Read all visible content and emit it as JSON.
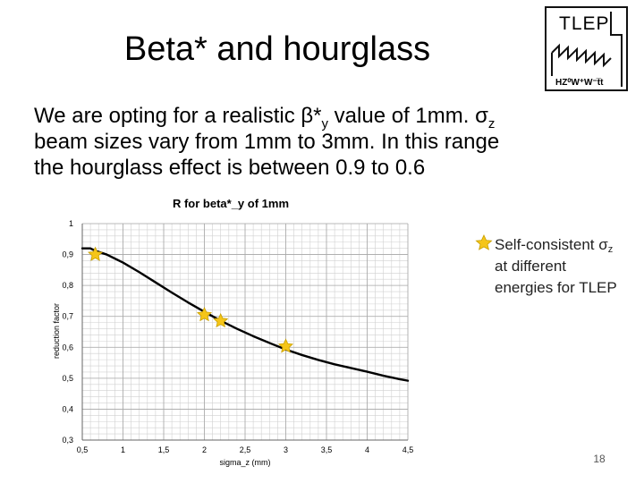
{
  "slide": {
    "title": "Beta* and hourglass",
    "page_number": "18",
    "logo": {
      "name": "TLEP",
      "subtitle": "HZ⁰W⁺W⁻t̅t"
    }
  },
  "paragraph": {
    "line1_pre": "We are opting for a realistic β*",
    "line1_sub": "y",
    "line1_post": " value of 1mm. σ",
    "line1_sub2": "z",
    "line2": "beam sizes vary from 1mm to 3mm. In this range",
    "line3": "the hourglass effect is between 0.9 to 0.6"
  },
  "legend": {
    "line1_pre": "Self-consistent σ",
    "line1_sub": "z",
    "line2": "at different",
    "line3": "energies for TLEP"
  },
  "chart_data": {
    "type": "line",
    "title": "R for beta*_y of 1mm",
    "xlabel": "sigma_z (mm)",
    "ylabel": "reduction factor",
    "xlim": [
      0.5,
      4.5
    ],
    "ylim": [
      0.3,
      1.0
    ],
    "grid": true,
    "x_ticks": [
      0.5,
      1,
      1.5,
      2,
      2.5,
      3,
      3.5,
      4,
      4.5
    ],
    "x_tick_labels": [
      "0,5",
      "1",
      "1,5",
      "2",
      "2,5",
      "3",
      "3,5",
      "4",
      "4,5"
    ],
    "y_ticks": [
      0.3,
      0.4,
      0.5,
      0.6,
      0.7,
      0.8,
      0.9,
      1.0
    ],
    "y_tick_labels": [
      "0,3",
      "0,4",
      "0,5",
      "0,6",
      "0,7",
      "0,8",
      "0,9",
      "1"
    ],
    "series": [
      {
        "name": "R",
        "x": [
          0.5,
          0.6,
          0.65,
          0.8,
          1.0,
          1.2,
          1.4,
          1.6,
          1.8,
          2.0,
          2.2,
          2.4,
          2.6,
          2.8,
          3.0,
          3.2,
          3.4,
          3.6,
          3.8,
          4.0,
          4.2,
          4.4,
          4.5
        ],
        "y": [
          0.92,
          0.92,
          0.913,
          0.9,
          0.874,
          0.843,
          0.81,
          0.777,
          0.745,
          0.715,
          0.686,
          0.66,
          0.636,
          0.614,
          0.593,
          0.575,
          0.559,
          0.545,
          0.533,
          0.521,
          0.508,
          0.497,
          0.492
        ],
        "color": "#000000"
      }
    ],
    "markers": {
      "name": "Self-consistent σz at different energies for TLEP",
      "x": [
        0.66,
        2.0,
        2.2,
        3.0
      ],
      "y": [
        0.9,
        0.705,
        0.685,
        0.603
      ],
      "color": "#f5c518"
    }
  }
}
